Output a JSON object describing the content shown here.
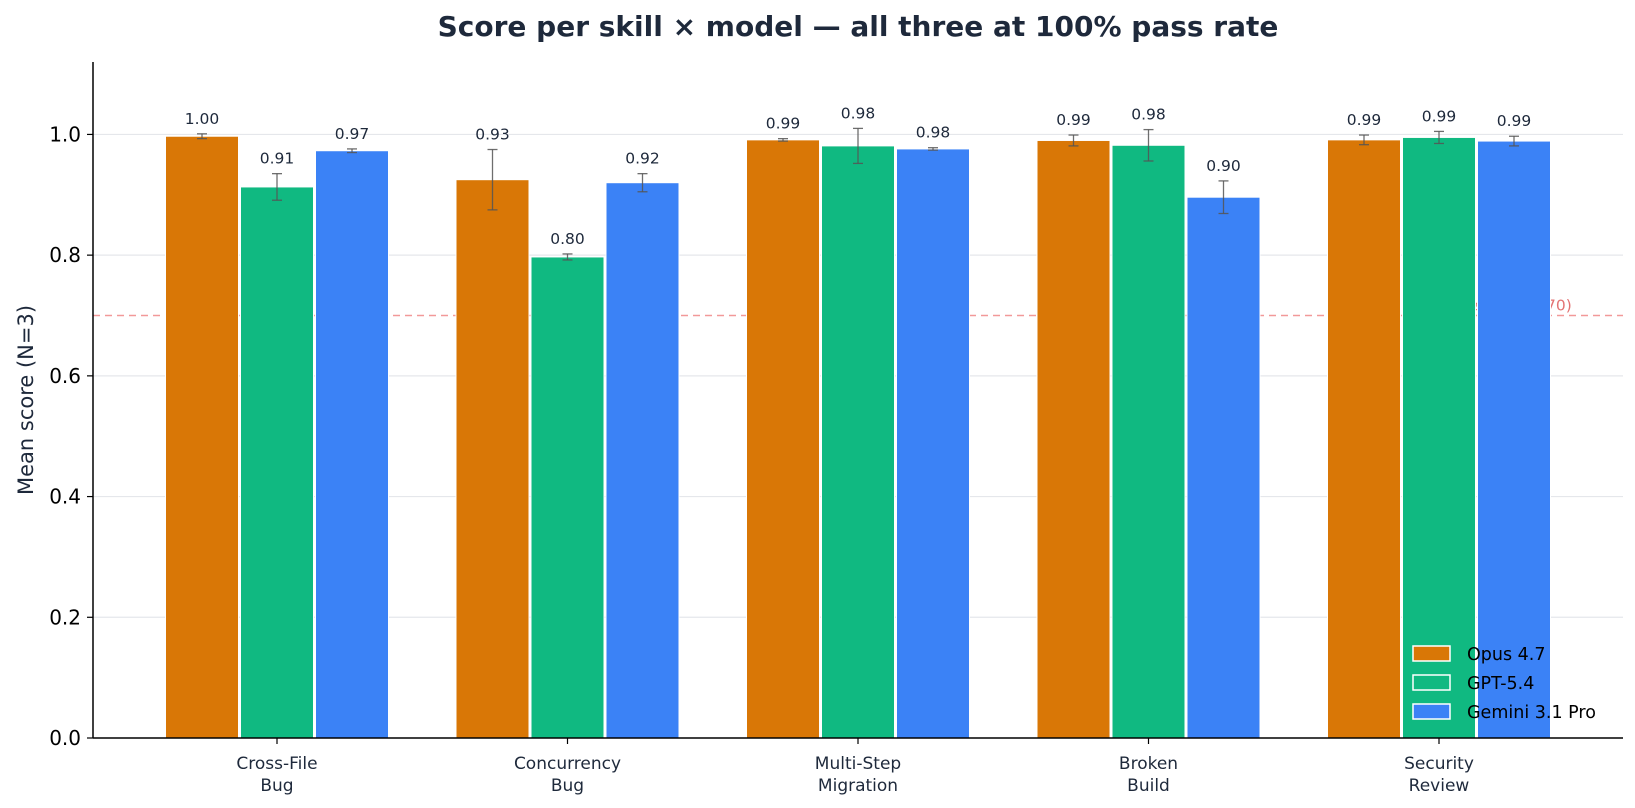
{
  "chart_data": {
    "type": "bar",
    "title": "Score per skill × model — all three at 100% pass rate",
    "ylabel": "Mean score (N=3)",
    "xlabel": "",
    "ylim": [
      0,
      1.12
    ],
    "yticks": [
      "0.0",
      "0.2",
      "0.4",
      "0.6",
      "0.8",
      "1.0"
    ],
    "ytick_values": [
      0,
      0.2,
      0.4,
      0.6,
      0.8,
      1.0
    ],
    "grid": "horizontal",
    "legend_position": "lower-right",
    "categories": [
      [
        "Cross-File",
        "Bug"
      ],
      [
        "Concurrency",
        "Bug"
      ],
      [
        "Multi-Step",
        "Migration"
      ],
      [
        "Broken",
        "Build"
      ],
      [
        "Security",
        "Review"
      ]
    ],
    "series": [
      {
        "name": "Opus 4.7",
        "color": "#d97706",
        "values": [
          0.997,
          0.925,
          0.991,
          0.99,
          0.991
        ],
        "errors": [
          0.004,
          0.05,
          0.002,
          0.009,
          0.008
        ],
        "labels": [
          "1.00",
          "0.93",
          "0.99",
          "0.99",
          "0.99"
        ]
      },
      {
        "name": "GPT-5.4",
        "color": "#10b981",
        "values": [
          0.913,
          0.797,
          0.981,
          0.982,
          0.995
        ],
        "errors": [
          0.022,
          0.005,
          0.029,
          0.026,
          0.01
        ],
        "labels": [
          "0.91",
          "0.80",
          "0.98",
          "0.98",
          "0.99"
        ]
      },
      {
        "name": "Gemini 3.1 Pro",
        "color": "#3b82f6",
        "values": [
          0.973,
          0.92,
          0.976,
          0.896,
          0.989
        ],
        "errors": [
          0.003,
          0.015,
          0.002,
          0.027,
          0.008
        ],
        "labels": [
          "0.97",
          "0.92",
          "0.98",
          "0.90",
          "0.99"
        ]
      }
    ],
    "threshold": {
      "value": 0.7,
      "label": "Pass threshold (0.70)",
      "color": "#f08080"
    }
  }
}
